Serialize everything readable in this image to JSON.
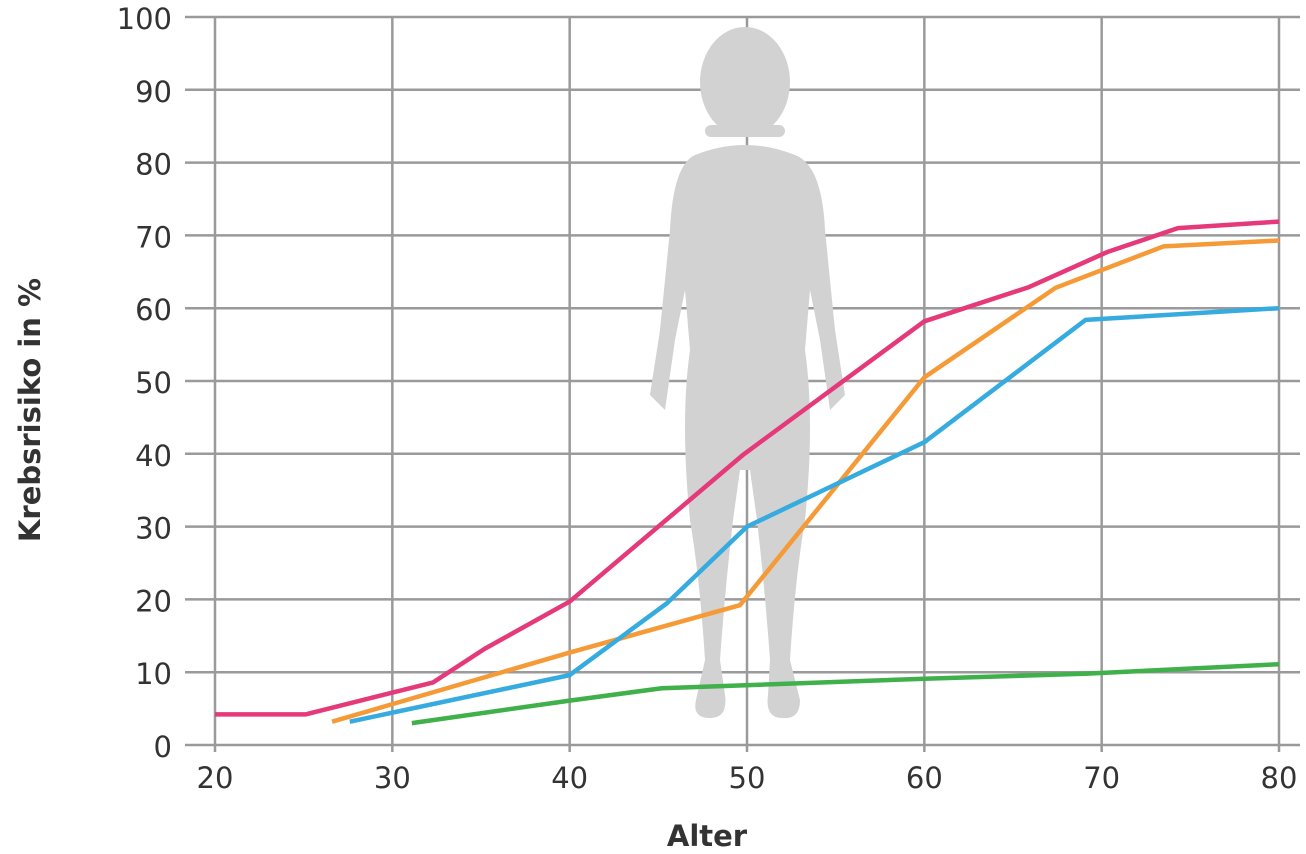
{
  "chart_data": {
    "type": "line",
    "xlabel": "Alter",
    "ylabel": "Krebsrisiko in %",
    "xlim": [
      20,
      80
    ],
    "xticks": [
      20,
      30,
      40,
      50,
      60,
      70,
      80
    ],
    "ylim": [
      0,
      100
    ],
    "yticks": [
      0,
      10,
      20,
      30,
      40,
      50,
      60,
      70,
      80,
      90,
      100
    ],
    "grid": true,
    "series": [
      {
        "color": "#e5397a",
        "x": [
          20,
          25.1,
          32.3,
          35.2,
          40,
          49.8,
          60,
          65.9,
          70.3,
          74.3,
          80
        ],
        "values": [
          4.2,
          4.2,
          8.6,
          13.2,
          19.7,
          39.9,
          58.2,
          62.9,
          67.7,
          71.0,
          71.9
        ]
      },
      {
        "color": "#f59a36",
        "x": [
          26.6,
          40,
          49.6,
          60,
          67.4,
          73.5,
          80
        ],
        "values": [
          3.2,
          12.7,
          19.2,
          50.5,
          62.8,
          68.5,
          69.3
        ]
      },
      {
        "color": "#35abe0",
        "x": [
          27.6,
          40,
          45.5,
          50,
          60,
          69.1,
          80
        ],
        "values": [
          3.2,
          9.6,
          19.5,
          30,
          41.6,
          58.4,
          60
        ]
      },
      {
        "color": "#40b04a",
        "x": [
          31.1,
          40,
          45.2,
          60,
          69.2,
          80
        ],
        "values": [
          3.0,
          6.1,
          7.8,
          9.1,
          9.8,
          11.1
        ]
      }
    ]
  }
}
